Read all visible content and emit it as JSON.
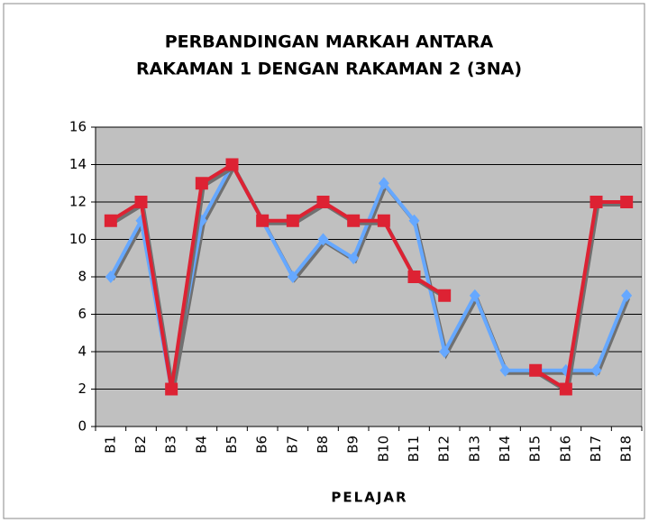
{
  "chart_data": {
    "type": "line",
    "title": [
      "PERBANDINGAN MARKAH ANTARA",
      "RAKAMAN 1 DENGAN RAKAMAN 2 (3NA)"
    ],
    "x_label": "PELAJAR",
    "categories": [
      "B1",
      "B2",
      "B3",
      "B4",
      "B5",
      "B6",
      "B7",
      "B8",
      "B9",
      "B10",
      "B11",
      "B12",
      "B13",
      "B14",
      "B15",
      "B16",
      "B17",
      "B18"
    ],
    "series": [
      {
        "color": "#66a8ff",
        "marker": "diamond",
        "values": [
          8,
          11,
          2,
          11,
          14,
          11,
          8,
          10,
          9,
          13,
          11,
          4,
          7,
          3,
          3,
          3,
          3,
          7
        ]
      },
      {
        "color": "#dd2233",
        "marker": "square",
        "values": [
          11,
          12,
          2,
          13,
          14,
          11,
          11,
          12,
          11,
          11,
          8,
          7,
          null,
          null,
          3,
          2,
          12,
          12
        ]
      }
    ],
    "ylim": [
      0,
      16
    ],
    "yticks": [
      0,
      2,
      4,
      6,
      8,
      10,
      12,
      14,
      16
    ],
    "grid": true,
    "plot_background": "#c0c0c0"
  }
}
